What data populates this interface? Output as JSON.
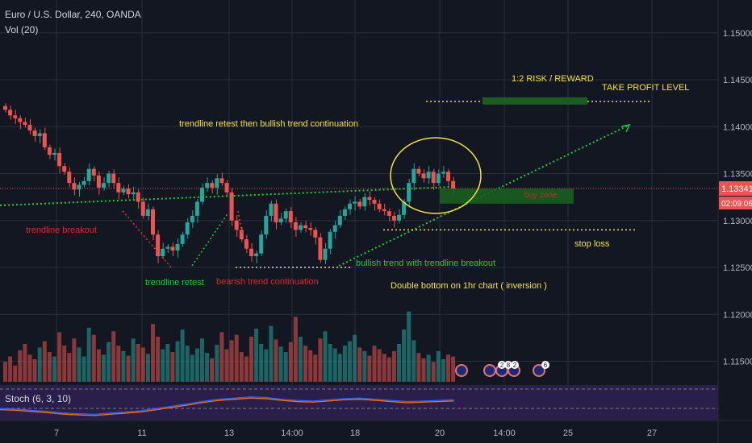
{
  "header": {
    "symbol": "Euro / U.S. Dollar, 240, OANDA",
    "volume_label": "Vol (20)"
  },
  "stoch": {
    "label": "Stoch (6, 3, 10)"
  },
  "colors": {
    "up": "#26a69a",
    "down": "#ef5350",
    "bg": "#131722",
    "grid": "#2a2e39",
    "annot_yellow": "#f5e23c",
    "annot_green": "#22c93c",
    "annot_red": "#c62828"
  },
  "price_axis": {
    "ticks": [
      "1.15000",
      "1.14500",
      "1.14000",
      "1.13500",
      "1.13000",
      "1.12500",
      "1.12000",
      "1.11500"
    ],
    "current_price": "1.13341",
    "countdown": "02:09:06"
  },
  "time_axis": {
    "ticks": [
      "7",
      "11",
      "13",
      "14:00",
      "18",
      "20",
      "14:00",
      "25",
      "27"
    ]
  },
  "annotations": {
    "risk_reward": "1:2 RISK / REWARD",
    "take_profit": "TAKE PROFIT LEVEL",
    "retest_note": "trendline retest then bullish trend continuation",
    "trendline_breakout": "trendline breakout",
    "trendline_retest": "trendline retest",
    "bearish_continuation": "bearish trend continuation",
    "bullish_breakout": "bullish trend with trendline breakout",
    "double_bottom": "Double bottom on 1hr chart ( inversion )",
    "stop_loss": "stop loss",
    "buy_zone": "buy zone"
  },
  "event_badges": [
    "2",
    "8",
    "2",
    "6"
  ],
  "chart_data": {
    "type": "candlestick",
    "title": "Euro / U.S. Dollar, 240, OANDA",
    "ylim": [
      1.1135,
      1.1535
    ],
    "close": [
      1.1418,
      1.1412,
      1.1409,
      1.1405,
      1.1402,
      1.1396,
      1.139,
      1.1393,
      1.1378,
      1.137,
      1.1372,
      1.1358,
      1.1352,
      1.134,
      1.1333,
      1.1338,
      1.1342,
      1.1355,
      1.1348,
      1.1335,
      1.134,
      1.135,
      1.134,
      1.133,
      1.1334,
      1.1328,
      1.133,
      1.132,
      1.1305,
      1.1312,
      1.1285,
      1.1262,
      1.127,
      1.1272,
      1.1268,
      1.1275,
      1.1285,
      1.1298,
      1.1305,
      1.132,
      1.1335,
      1.134,
      1.1335,
      1.1345,
      1.134,
      1.133,
      1.13,
      1.129,
      1.128,
      1.127,
      1.1262,
      1.1265,
      1.1285,
      1.1305,
      1.1318,
      1.1298,
      1.1302,
      1.131,
      1.1298,
      1.129,
      1.1295,
      1.1292,
      1.129,
      1.1282,
      1.1258,
      1.127,
      1.1288,
      1.1295,
      1.1305,
      1.1312,
      1.1318,
      1.132,
      1.1315,
      1.1325,
      1.1322,
      1.1318,
      1.1312,
      1.131,
      1.1305,
      1.13,
      1.1306,
      1.132,
      1.134,
      1.1355,
      1.135,
      1.1345,
      1.1352,
      1.134,
      1.135,
      1.1352,
      1.1342,
      1.1334
    ],
    "volume_scale": "relative 0-1",
    "volume": [
      0.22,
      0.28,
      0.18,
      0.35,
      0.42,
      0.3,
      0.25,
      0.38,
      0.45,
      0.33,
      0.28,
      0.55,
      0.4,
      0.32,
      0.48,
      0.38,
      0.28,
      0.6,
      0.52,
      0.36,
      0.3,
      0.44,
      0.56,
      0.4,
      0.34,
      0.29,
      0.48,
      0.42,
      0.38,
      0.31,
      0.64,
      0.5,
      0.36,
      0.42,
      0.33,
      0.45,
      0.58,
      0.4,
      0.3,
      0.37,
      0.48,
      0.32,
      0.26,
      0.41,
      0.55,
      0.36,
      0.46,
      0.52,
      0.33,
      0.28,
      0.5,
      0.59,
      0.42,
      0.36,
      0.62,
      0.47,
      0.39,
      0.33,
      0.44,
      0.72,
      0.5,
      0.4,
      0.35,
      0.3,
      0.48,
      0.56,
      0.42,
      0.37,
      0.31,
      0.4,
      0.45,
      0.52,
      0.38,
      0.34,
      0.29,
      0.4,
      0.36,
      0.31,
      0.27,
      0.34,
      0.42,
      0.58,
      0.78,
      0.46,
      0.32,
      0.26,
      0.3,
      0.22,
      0.34,
      0.25,
      0.3,
      0.28
    ],
    "stoch_scale": "relative 0-1",
    "stoch": [
      0.3,
      0.28,
      0.24,
      0.2,
      0.15,
      0.12,
      0.1,
      0.14,
      0.18,
      0.22,
      0.3,
      0.38,
      0.46,
      0.55,
      0.62,
      0.66,
      0.7,
      0.68,
      0.62,
      0.58,
      0.56,
      0.6,
      0.64,
      0.66,
      0.62,
      0.58,
      0.54,
      0.56,
      0.58,
      0.6
    ],
    "levels": {
      "take_profit": 1.1427,
      "stop_loss": 1.129,
      "buy_zone": [
        1.1318,
        1.1334
      ],
      "double_bottom_support": 1.125
    }
  }
}
